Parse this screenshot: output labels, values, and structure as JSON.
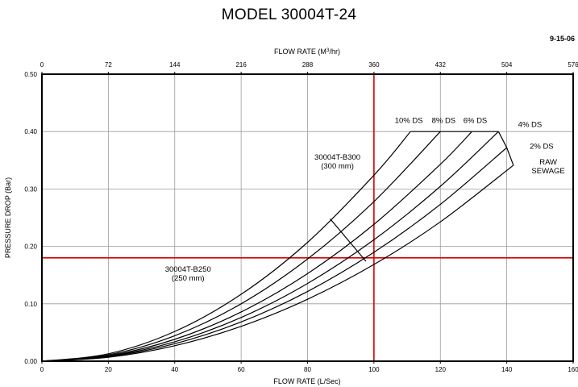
{
  "chart_data": {
    "type": "line",
    "title": "MODEL 30004T-24",
    "date": "9-15-06",
    "xlabel": "FLOW RATE (L/Sec)",
    "x2label_parts": [
      "FLOW RATE (M",
      "3",
      "/hr)"
    ],
    "ylabel": "PRESSURE DROP (Bar)",
    "xlim": [
      0,
      160
    ],
    "ylim": [
      0,
      0.5
    ],
    "x_ticks": [
      0,
      20,
      40,
      60,
      80,
      100,
      120,
      140,
      160
    ],
    "x_tick_labels": [
      "0",
      "20",
      "40",
      "60",
      "80",
      "100",
      "120",
      "140",
      "160"
    ],
    "x2_ticks": [
      0,
      72,
      144,
      216,
      288,
      360,
      432,
      504,
      576
    ],
    "x2_tick_labels": [
      "0",
      "72",
      "144",
      "216",
      "288",
      "360",
      "432",
      "504",
      "576"
    ],
    "y_ticks": [
      0,
      0.1,
      0.2,
      0.3,
      0.4,
      0.5
    ],
    "y_tick_labels": [
      "0.00",
      "0.10",
      "0.20",
      "0.30",
      "0.40",
      "0.50"
    ],
    "grid": true,
    "series": [
      {
        "name": "10% DS",
        "x": [
          0,
          20,
          40,
          60,
          80,
          100,
          111
        ],
        "y": [
          0,
          0.0129,
          0.0518,
          0.1165,
          0.207,
          0.324,
          0.4
        ]
      },
      {
        "name": "8% DS",
        "x": [
          0,
          20,
          40,
          60,
          80,
          100,
          120
        ],
        "y": [
          0,
          0.0111,
          0.0444,
          0.1,
          0.178,
          0.278,
          0.4
        ]
      },
      {
        "name": "6% DS",
        "x": [
          0,
          20,
          40,
          60,
          80,
          100,
          120,
          129.5
        ],
        "y": [
          0,
          0.0095,
          0.0381,
          0.0858,
          0.1526,
          0.2384,
          0.343,
          0.4
        ]
      },
      {
        "name": "4% DS",
        "x": [
          0,
          20,
          40,
          60,
          80,
          100,
          120,
          137.5
        ],
        "y": [
          0,
          0.0085,
          0.0338,
          0.0761,
          0.1354,
          0.2115,
          0.3046,
          0.4
        ]
      },
      {
        "name": "2% DS",
        "x": [
          0,
          20,
          40,
          60,
          80,
          100,
          120,
          140
        ],
        "y": [
          0,
          0.0076,
          0.0304,
          0.0683,
          0.1214,
          0.1897,
          0.2732,
          0.372
        ]
      },
      {
        "name": "RAW SEWAGE",
        "x": [
          0,
          20,
          40,
          60,
          80,
          100,
          120,
          142
        ],
        "y": [
          0,
          0.0068,
          0.027,
          0.0607,
          0.1079,
          0.1685,
          0.2427,
          0.3414
        ]
      }
    ],
    "envelope": [
      {
        "x": [
          111,
          137.5
        ],
        "y": [
          0.4,
          0.4
        ]
      },
      {
        "x": [
          137.5,
          140,
          142
        ],
        "y": [
          0.4,
          0.372,
          0.3414
        ]
      },
      {
        "x": [
          86.8,
          97.6
        ],
        "y": [
          0.248,
          0.174
        ]
      }
    ],
    "reference_lines": [
      {
        "orientation": "vertical",
        "x": 100,
        "color": "#d90000"
      },
      {
        "orientation": "horizontal",
        "y": 0.18,
        "color": "#d90000"
      }
    ],
    "annotations": [
      {
        "lines": [
          "10% DS"
        ],
        "x": 110.5,
        "y": 0.415
      },
      {
        "lines": [
          "8% DS"
        ],
        "x": 121,
        "y": 0.415
      },
      {
        "lines": [
          "6% DS"
        ],
        "x": 130.5,
        "y": 0.415
      },
      {
        "lines": [
          "4% DS"
        ],
        "x": 147,
        "y": 0.408
      },
      {
        "lines": [
          "2% DS"
        ],
        "x": 150.5,
        "y": 0.37
      },
      {
        "lines": [
          "RAW",
          "SEWAGE"
        ],
        "x": 152.5,
        "y": 0.343
      },
      {
        "lines": [
          "30004T-B300",
          "(300 mm)"
        ],
        "x": 89,
        "y": 0.351
      },
      {
        "lines": [
          "30004T-B250",
          "(250 mm)"
        ],
        "x": 44,
        "y": 0.156
      }
    ]
  }
}
